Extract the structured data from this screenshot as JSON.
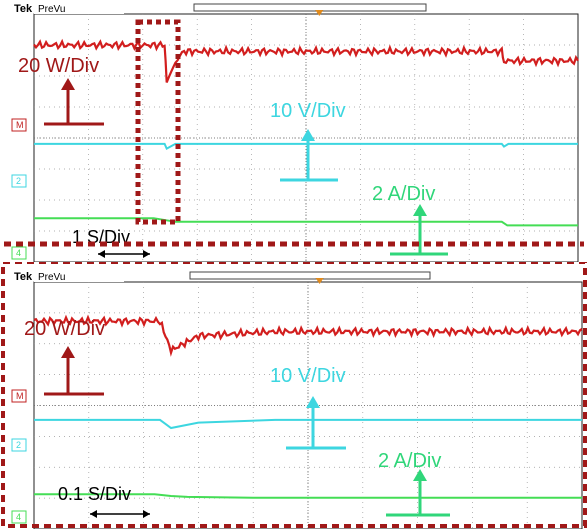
{
  "chart_data": [
    {
      "type": "line",
      "brand": "Tek",
      "mode": "PreVu",
      "timebase": "1 S/Div",
      "channel_markers": [
        "M",
        "2",
        "4"
      ],
      "series": [
        {
          "color": "#d21e1e",
          "scale": "20 W/Div",
          "x": [
            0,
            1.2,
            1.22,
            1.3,
            1.38,
            4.3,
            4.32,
            5
          ],
          "y": [
            58,
            58,
            22,
            42,
            52,
            52,
            43,
            43
          ]
        },
        {
          "color": "#3dd6e0",
          "scale": "10 V/Div",
          "x": [
            0,
            1.2,
            1.22,
            1.3,
            4.3,
            4.32,
            4.36,
            5
          ],
          "y": [
            12,
            12,
            5,
            12,
            12,
            8,
            12,
            12
          ]
        },
        {
          "color": "#44dd55",
          "scale": "2 A/Div",
          "x": [
            0,
            1.1,
            1.3,
            4.3,
            4.35,
            5
          ],
          "y": [
            22,
            22,
            18,
            18,
            14,
            14
          ]
        }
      ]
    },
    {
      "type": "line",
      "brand": "Tek",
      "mode": "PreVu",
      "timebase": "0.1 S/Div",
      "channel_markers": [
        "M",
        "2",
        "4"
      ],
      "series": [
        {
          "color": "#d21e1e",
          "scale": "20 W/Div",
          "x": [
            0,
            1.15,
            1.2,
            1.25,
            1.5,
            2.2,
            5
          ],
          "y": [
            58,
            58,
            44,
            30,
            44,
            48,
            48
          ]
        },
        {
          "color": "#3dd6e0",
          "scale": "10 V/Div",
          "x": [
            0,
            1.15,
            1.2,
            1.25,
            1.5,
            2.2,
            5
          ],
          "y": [
            12,
            12,
            6,
            0,
            8,
            12,
            12
          ]
        },
        {
          "color": "#44dd55",
          "scale": "2 A/Div",
          "x": [
            0,
            1.1,
            1.25,
            1.4,
            2.0,
            5
          ],
          "y": [
            22,
            22,
            20,
            19,
            18,
            18
          ]
        }
      ]
    }
  ]
}
